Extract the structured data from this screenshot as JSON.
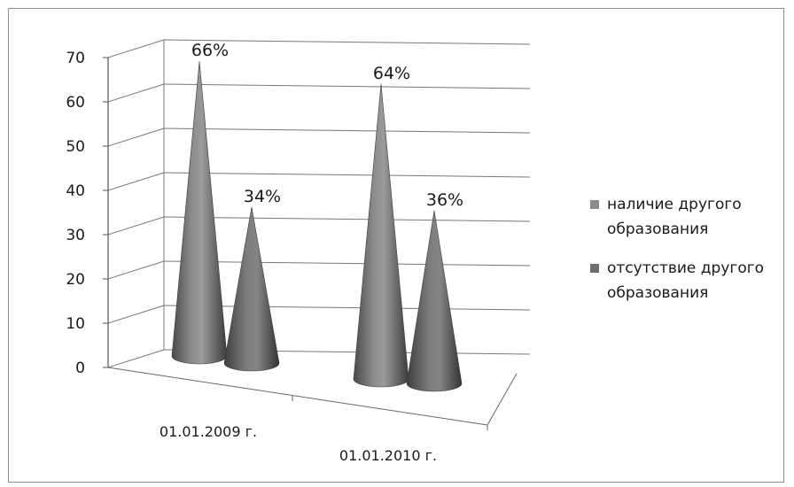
{
  "chart_data": {
    "type": "bar",
    "subtype": "3d-cone",
    "title": "",
    "xlabel": "",
    "ylabel": "",
    "categories": [
      "01.01.2009 г.",
      "01.01.2010 г."
    ],
    "series": [
      {
        "name": "наличие другого образования",
        "values": [
          66,
          64
        ],
        "labels": [
          "66%",
          "64%"
        ],
        "color": "#8a8a8a"
      },
      {
        "name": "отсутствие другого образования",
        "values": [
          34,
          36
        ],
        "labels": [
          "34%",
          "36%"
        ],
        "color": "#6e6e6e"
      }
    ],
    "ylim": [
      0,
      70
    ],
    "yticks": [
      0,
      10,
      20,
      30,
      40,
      50,
      60,
      70
    ],
    "grid": true,
    "legend": "right"
  },
  "legend": {
    "items": [
      {
        "lines": [
          "наличие другого",
          "образования"
        ],
        "color": "#8a8a8a"
      },
      {
        "lines": [
          "отсутствие другого",
          "образования"
        ],
        "color": "#6e6e6e"
      }
    ]
  }
}
